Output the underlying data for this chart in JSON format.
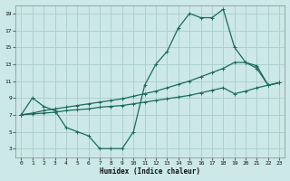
{
  "xlabel": "Humidex (Indice chaleur)",
  "bg_color": "#cce8e8",
  "grid_color": "#aacccc",
  "line_color": "#1a6a5a",
  "xlim": [
    -0.5,
    23.5
  ],
  "ylim": [
    2.0,
    20.0
  ],
  "xticks": [
    0,
    1,
    2,
    3,
    4,
    5,
    6,
    7,
    8,
    9,
    10,
    11,
    12,
    13,
    14,
    15,
    16,
    17,
    18,
    19,
    20,
    21,
    22,
    23
  ],
  "yticks": [
    3,
    5,
    7,
    9,
    11,
    13,
    15,
    17,
    19
  ],
  "line1_x": [
    0,
    1,
    2,
    3,
    4,
    5,
    6,
    7,
    8,
    9,
    10,
    11,
    12,
    13,
    14,
    15,
    16,
    17,
    18,
    19,
    20,
    21,
    22,
    23
  ],
  "line1_y": [
    7.0,
    9.0,
    8.0,
    7.5,
    5.5,
    5.0,
    4.5,
    3.0,
    3.0,
    3.0,
    5.0,
    10.5,
    13.0,
    14.5,
    17.3,
    19.0,
    18.5,
    18.5,
    19.5,
    15.0,
    13.2,
    12.5,
    10.5,
    10.8
  ],
  "line2_x": [
    0,
    1,
    2,
    3,
    4,
    5,
    6,
    7,
    8,
    9,
    10,
    11,
    12,
    13,
    14,
    15,
    16,
    17,
    18,
    19,
    20,
    21,
    22,
    23
  ],
  "line2_y": [
    7.0,
    7.2,
    7.5,
    7.7,
    7.9,
    8.1,
    8.3,
    8.5,
    8.7,
    8.9,
    9.2,
    9.5,
    9.8,
    10.2,
    10.6,
    11.0,
    11.5,
    12.0,
    12.5,
    13.2,
    13.2,
    12.8,
    10.5,
    10.8
  ],
  "line3_x": [
    0,
    1,
    2,
    3,
    4,
    5,
    6,
    7,
    8,
    9,
    10,
    11,
    12,
    13,
    14,
    15,
    16,
    17,
    18,
    19,
    20,
    21,
    22,
    23
  ],
  "line3_y": [
    7.0,
    7.1,
    7.2,
    7.3,
    7.5,
    7.6,
    7.7,
    7.9,
    8.0,
    8.1,
    8.3,
    8.5,
    8.7,
    8.9,
    9.1,
    9.3,
    9.6,
    9.9,
    10.2,
    9.5,
    9.8,
    10.2,
    10.5,
    10.8
  ]
}
